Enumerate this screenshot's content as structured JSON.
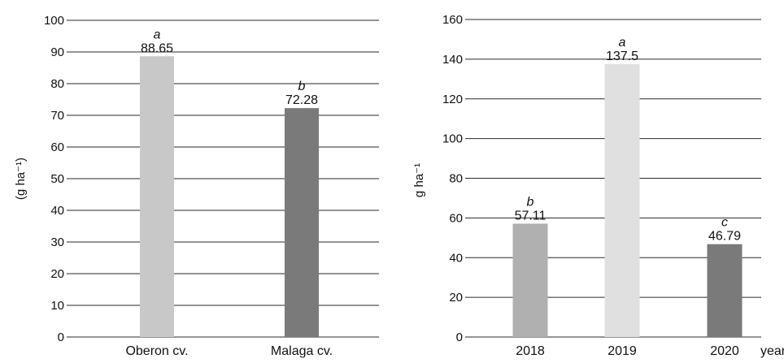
{
  "chart_data": [
    {
      "type": "bar",
      "title": "",
      "xlabel": "",
      "ylabel": "(g ha⁻¹)",
      "ylim": [
        0,
        100
      ],
      "ytick_step": 10,
      "grid": true,
      "categories": [
        "Oberon cv.",
        "Malaga cv."
      ],
      "values": [
        88.65,
        72.28
      ],
      "value_labels": [
        "88.65",
        "72.28"
      ],
      "significance": [
        "a",
        "b"
      ],
      "colors": [
        "#c8c8c8",
        "#7a7a7a"
      ]
    },
    {
      "type": "bar",
      "title": "",
      "xlabel": "years",
      "ylabel": "g ha⁻¹",
      "ylim": [
        0,
        160
      ],
      "ytick_step": 20,
      "grid": true,
      "categories": [
        "2018",
        "2019",
        "2020"
      ],
      "values": [
        57.11,
        137.5,
        46.79
      ],
      "value_labels": [
        "57.11",
        "137.5",
        "46.79"
      ],
      "significance": [
        "b",
        "a",
        "c"
      ],
      "colors": [
        "#b0b0b0",
        "#e0e0e0",
        "#7a7a7a"
      ]
    }
  ]
}
